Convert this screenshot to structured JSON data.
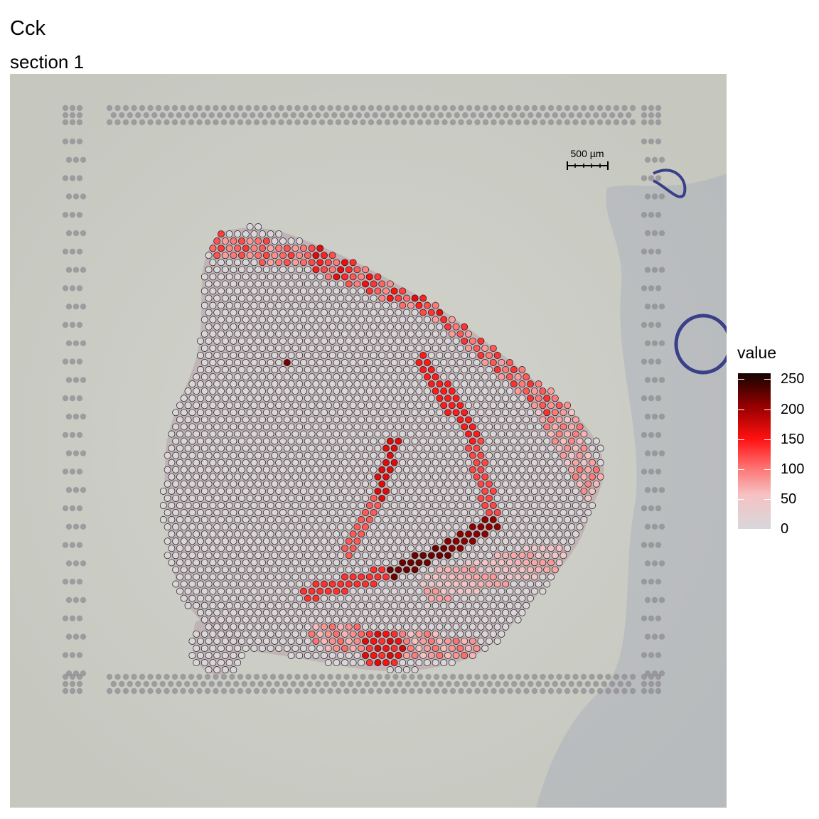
{
  "header": {
    "title": "Cck",
    "subtitle": "section 1"
  },
  "scale_bar": {
    "label": "500 µm"
  },
  "chart_data": {
    "type": "scatter",
    "title": "Cck",
    "subtitle": "section 1",
    "description": "Spatial transcriptomics spots over an H&E tissue image, colored by expression value",
    "legend": {
      "title": "value",
      "position": "right",
      "ticks": [
        0,
        50,
        100,
        150,
        200,
        250
      ],
      "range": [
        0,
        260
      ],
      "colors": [
        "#d7d7dc",
        "#f6c2c2",
        "#ff6f6f",
        "#ff1010",
        "#9a0000",
        "#130400"
      ]
    },
    "grid": false,
    "high_expression_regions": [
      {
        "region": "inner arc (left branch)",
        "approx_value": 150
      },
      {
        "region": "lower arc",
        "approx_value": 220
      },
      {
        "region": "outer cortical band",
        "approx_value": 90
      },
      {
        "region": "bottom cluster",
        "approx_value": 130
      },
      {
        "region": "main tissue body",
        "approx_value": 5
      }
    ]
  }
}
